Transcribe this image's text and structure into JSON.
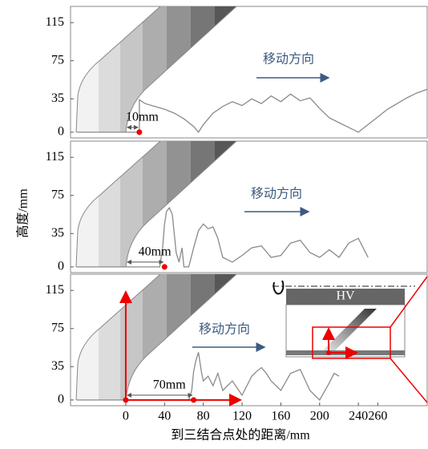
{
  "chart_data": [
    {
      "type": "line",
      "xlim": [
        -57,
        311
      ],
      "ylim": [
        -6,
        132
      ],
      "yticks": [
        0,
        35,
        75,
        115
      ],
      "series": [
        {
          "color": "#8a8a8a",
          "x": [
            -51,
            14,
            14,
            20,
            30,
            40,
            50,
            60,
            70,
            75,
            80,
            90,
            100,
            110,
            120,
            130,
            140,
            150,
            160,
            170,
            180,
            190,
            200,
            210,
            220,
            230,
            240,
            250,
            260,
            270,
            280,
            290,
            300,
            311
          ],
          "values": [
            0,
            0,
            34,
            30,
            27,
            24,
            20,
            14,
            6,
            0,
            8,
            20,
            27,
            32,
            28,
            35,
            30,
            38,
            32,
            40,
            33,
            36,
            25,
            15,
            10,
            5,
            0,
            8,
            16,
            24,
            30,
            36,
            41,
            45
          ]
        }
      ],
      "direction_label": "移动方向",
      "distance_label": "10mm",
      "point_x": 14
    },
    {
      "type": "line",
      "xlim": [
        -57,
        311
      ],
      "ylim": [
        -6,
        132
      ],
      "yticks": [
        0,
        35,
        75,
        115
      ],
      "ylabel": "高度/mm",
      "series": [
        {
          "color": "#8a8a8a",
          "x": [
            -51,
            30,
            35,
            38,
            40,
            42,
            45,
            48,
            50,
            52,
            55,
            58,
            60,
            65,
            70,
            75,
            80,
            85,
            90,
            95,
            100,
            110,
            120,
            130,
            140,
            150,
            160,
            170,
            180,
            190,
            200,
            210,
            220,
            230,
            240,
            250
          ],
          "values": [
            0,
            0,
            0,
            20,
            45,
            58,
            62,
            55,
            35,
            15,
            5,
            20,
            0,
            0,
            20,
            38,
            45,
            40,
            42,
            30,
            10,
            5,
            12,
            20,
            22,
            10,
            12,
            25,
            28,
            15,
            10,
            18,
            10,
            25,
            30,
            10
          ]
        }
      ],
      "direction_label": "移动方向",
      "distance_label": "40mm",
      "point_x": 40
    },
    {
      "type": "line",
      "xlim": [
        -57,
        311
      ],
      "ylim": [
        -6,
        132
      ],
      "yticks": [
        0,
        35,
        75,
        115
      ],
      "xticks": [
        0,
        40,
        80,
        120,
        160,
        200,
        240,
        260
      ],
      "xlabel": "到三结合点处的距离/mm",
      "series": [
        {
          "color": "#8a8a8a",
          "x": [
            -51,
            60,
            65,
            68,
            70,
            72,
            75,
            78,
            80,
            85,
            90,
            95,
            100,
            110,
            120,
            125,
            130,
            135,
            140,
            145,
            150,
            160,
            170,
            180,
            190,
            200,
            210,
            215,
            220
          ],
          "values": [
            0,
            0,
            0,
            10,
            30,
            40,
            50,
            30,
            20,
            25,
            15,
            28,
            10,
            20,
            5,
            15,
            25,
            30,
            34,
            28,
            20,
            10,
            28,
            32,
            10,
            0,
            18,
            28,
            25
          ]
        }
      ],
      "direction_label": "移动方向",
      "distance_label": "70mm",
      "point_x": 70,
      "inset_label": "HV"
    }
  ]
}
